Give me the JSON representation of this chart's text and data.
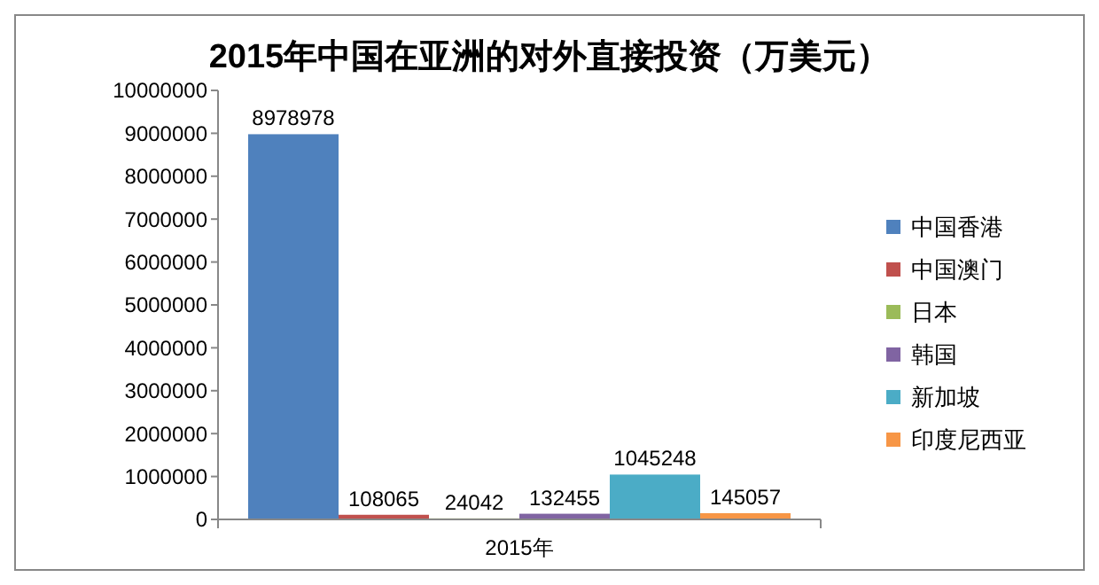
{
  "chart_data": {
    "type": "bar",
    "title": "2015年中国在亚洲的对外直接投资（万美元）",
    "categories": [
      "2015年"
    ],
    "series": [
      {
        "name": "中国香港",
        "color": "#4f81bd",
        "values": [
          8978978
        ]
      },
      {
        "name": "中国澳门",
        "color": "#c0504d",
        "values": [
          108065
        ]
      },
      {
        "name": "日本",
        "color": "#9bbb59",
        "values": [
          24042
        ]
      },
      {
        "name": "韩国",
        "color": "#8064a2",
        "values": [
          132455
        ]
      },
      {
        "name": "新加坡",
        "color": "#4bacc6",
        "values": [
          1045248
        ]
      },
      {
        "name": "印度尼西亚",
        "color": "#f79646",
        "values": [
          145057
        ]
      }
    ],
    "ylim": [
      0,
      10000000
    ],
    "yticks": [
      0,
      1000000,
      2000000,
      3000000,
      4000000,
      5000000,
      6000000,
      7000000,
      8000000,
      9000000,
      10000000
    ],
    "grid": false,
    "legend": "right",
    "data_labels": true
  }
}
